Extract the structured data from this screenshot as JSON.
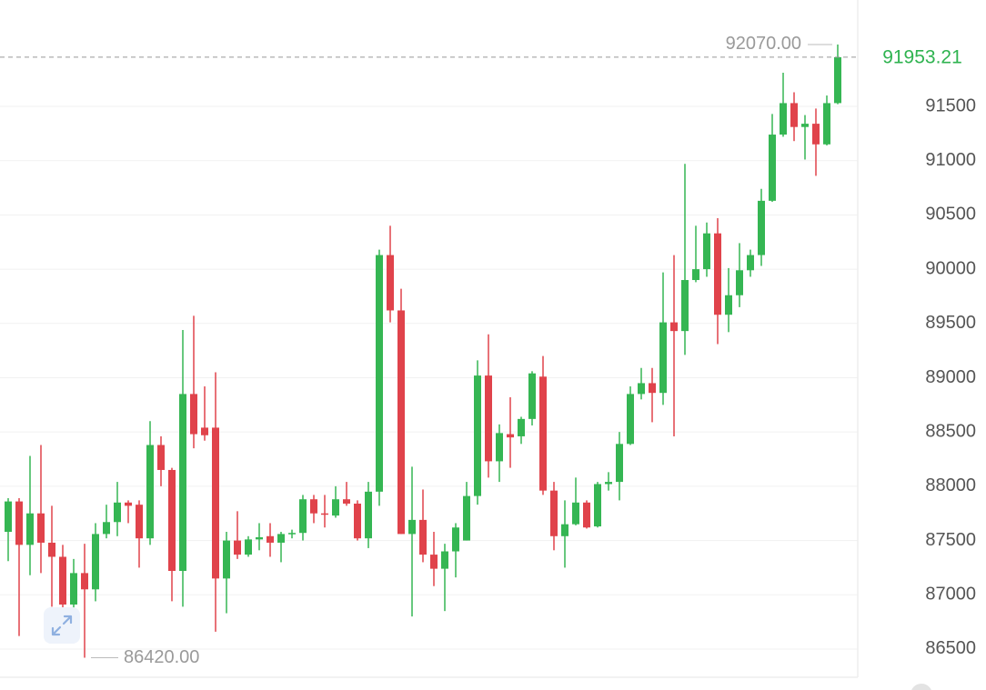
{
  "chart_data": {
    "type": "candlestick",
    "ylim": [
      86240,
      92480
    ],
    "yticks": [
      86500,
      87000,
      87500,
      88000,
      88500,
      89000,
      89500,
      90000,
      90500,
      91000,
      91500
    ],
    "grid": true,
    "up_color": "#35b653",
    "down_color": "#e0434b",
    "open": [
      87580,
      87860,
      87460,
      87750,
      87480,
      87350,
      86910,
      87200,
      87050,
      87560,
      87670,
      87850,
      87830,
      87520,
      88380,
      88150,
      87220,
      88850,
      88540,
      88540,
      87150,
      87500,
      87370,
      87510,
      87540,
      87480,
      87560,
      87570,
      87880,
      87750,
      87730,
      87880,
      87840,
      87520,
      87950,
      90130,
      89620,
      87560,
      87690,
      87370,
      87240,
      87400,
      87500,
      87910,
      89020,
      88230,
      88480,
      88460,
      88620,
      89010,
      87960,
      87540,
      87650,
      87850,
      87630,
      88020,
      88040,
      88390,
      88850,
      88950,
      88860,
      89510,
      89430,
      89900,
      90000,
      90330,
      89580,
      89760,
      89990,
      90130,
      90630,
      91240,
      91530,
      91310,
      91340,
      91150,
      91530
    ],
    "high": [
      87890,
      87890,
      88280,
      88380,
      87820,
      87460,
      87330,
      87470,
      87660,
      87830,
      88040,
      87870,
      87870,
      88600,
      88460,
      88170,
      89440,
      89570,
      88920,
      89050,
      87580,
      87770,
      87540,
      87660,
      87660,
      87580,
      87600,
      87920,
      87920,
      87920,
      88000,
      88040,
      87870,
      88040,
      90180,
      90400,
      89820,
      88180,
      87970,
      87580,
      87470,
      87660,
      88040,
      89160,
      89400,
      88570,
      88820,
      88640,
      89060,
      89200,
      88040,
      87870,
      88080,
      87870,
      88040,
      88130,
      88500,
      88920,
      89090,
      89090,
      89970,
      90130,
      90970,
      90400,
      90430,
      90470,
      90010,
      90240,
      90180,
      90740,
      91430,
      91810,
      91630,
      91420,
      91480,
      91600,
      92070
    ],
    "low": [
      87310,
      86620,
      87180,
      87200,
      86890,
      86700,
      86790,
      86420,
      86940,
      87520,
      87540,
      87660,
      87250,
      87460,
      88000,
      86940,
      86890,
      88350,
      88420,
      86660,
      86830,
      87330,
      87350,
      87410,
      87350,
      87300,
      87520,
      87500,
      87660,
      87620,
      87710,
      87820,
      87500,
      87430,
      87820,
      89510,
      87560,
      86800,
      87300,
      87080,
      86850,
      87160,
      87500,
      87830,
      88080,
      88040,
      88170,
      88390,
      88560,
      87920,
      87410,
      87250,
      87640,
      87610,
      87620,
      87960,
      87870,
      88380,
      88800,
      88590,
      88750,
      88460,
      89210,
      89880,
      89930,
      89310,
      89420,
      89650,
      89930,
      90030,
      90620,
      91220,
      91180,
      91010,
      90860,
      91140,
      91520
    ],
    "close": [
      87860,
      87460,
      87750,
      87480,
      87350,
      86910,
      87200,
      87050,
      87560,
      87670,
      87850,
      87820,
      87520,
      88380,
      88150,
      87220,
      88850,
      88480,
      88470,
      87150,
      87500,
      87370,
      87510,
      87530,
      87480,
      87560,
      87570,
      87880,
      87750,
      87740,
      87880,
      87840,
      87520,
      87950,
      90130,
      89620,
      87560,
      87690,
      87370,
      87240,
      87400,
      87620,
      87910,
      89020,
      88230,
      88490,
      88450,
      88620,
      89040,
      87960,
      87540,
      87650,
      87850,
      87620,
      88020,
      88040,
      88390,
      88850,
      88950,
      88860,
      89510,
      89430,
      89900,
      90000,
      90330,
      89580,
      89760,
      89990,
      90130,
      90630,
      91240,
      91530,
      91310,
      91340,
      91150,
      91530,
      91953.21
    ],
    "annotations": [
      {
        "label": "92070.00",
        "value": 92070
      },
      {
        "label": "86420.00",
        "value": 86420
      },
      {
        "label": "91953.21",
        "value": 91953.21
      }
    ]
  }
}
